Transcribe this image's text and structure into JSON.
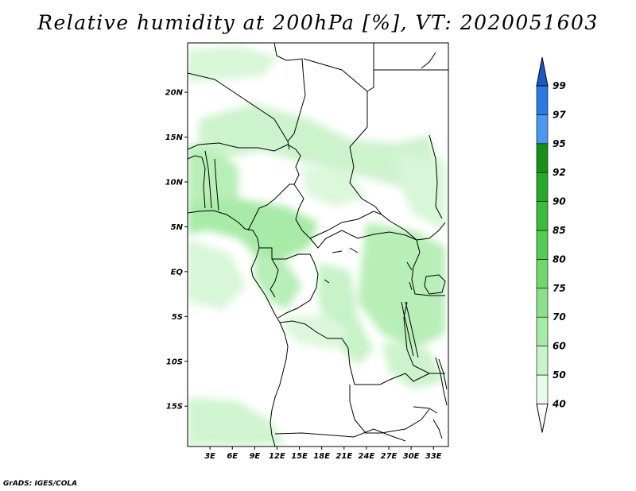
{
  "title": "Relative humidity at 200hPa [%], VT: 2020051603",
  "footer": "GrADS: IGES/COLA",
  "map": {
    "lat_range": [
      -19.5,
      25.5
    ],
    "lon_range": [
      0,
      35
    ],
    "lat_ticks": [
      {
        "value": 20,
        "label": "20N"
      },
      {
        "value": 15,
        "label": "15N"
      },
      {
        "value": 10,
        "label": "10N"
      },
      {
        "value": 5,
        "label": "5N"
      },
      {
        "value": 0,
        "label": "EQ"
      },
      {
        "value": -5,
        "label": "5S"
      },
      {
        "value": -10,
        "label": "10S"
      },
      {
        "value": -15,
        "label": "15S"
      }
    ],
    "lon_ticks": [
      {
        "value": 3,
        "label": "3E"
      },
      {
        "value": 6,
        "label": "6E"
      },
      {
        "value": 9,
        "label": "9E"
      },
      {
        "value": 12,
        "label": "12E"
      },
      {
        "value": 15,
        "label": "15E"
      },
      {
        "value": 18,
        "label": "18E"
      },
      {
        "value": 21,
        "label": "21E"
      },
      {
        "value": 24,
        "label": "24E"
      },
      {
        "value": 27,
        "label": "27E"
      },
      {
        "value": 30,
        "label": "30E"
      },
      {
        "value": 33,
        "label": "33E"
      }
    ]
  },
  "colorbar": {
    "levels": [
      "40",
      "50",
      "60",
      "70",
      "75",
      "80",
      "85",
      "90",
      "92",
      "95",
      "97",
      "99"
    ],
    "colors": [
      "#e8fae8",
      "#c8f2c8",
      "#a8eaa8",
      "#8ce08c",
      "#6ed86e",
      "#52cc52",
      "#3cbc3c",
      "#28a828",
      "#189018",
      "#4a98f0",
      "#2a78e0",
      "#1a5ac8"
    ],
    "below_color": "#ffffff"
  }
}
